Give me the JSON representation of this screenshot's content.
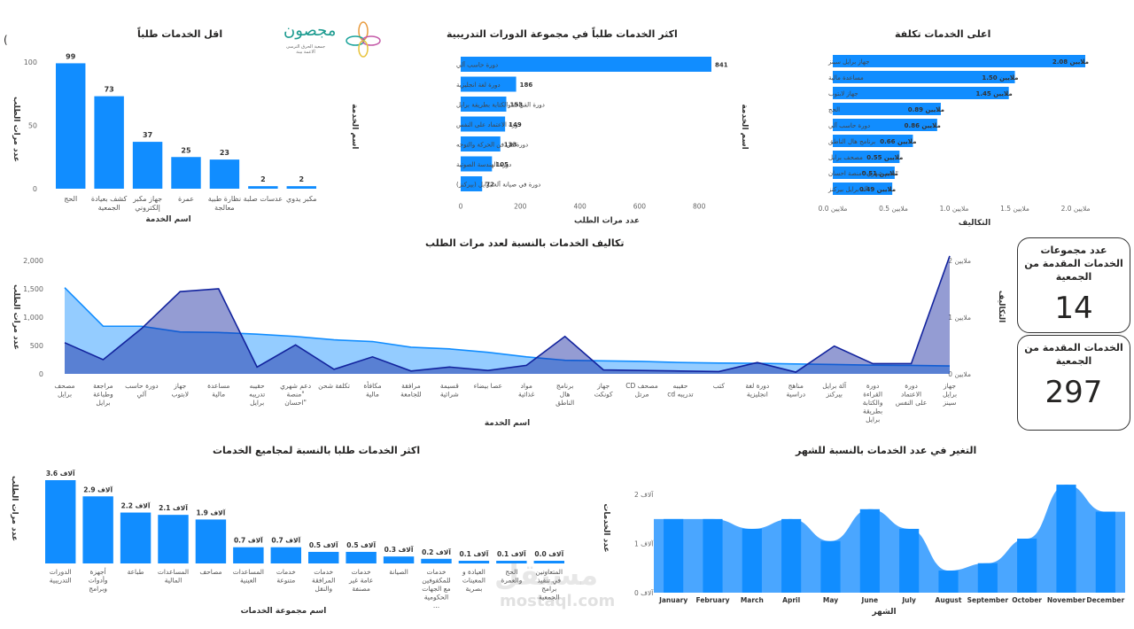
{
  "cards": {
    "groups_label": "عدد مجموعات الخدمات المقدمة من الجمعية",
    "groups_value": "14",
    "services_label": "الخدمات المقدمة من الجمعية",
    "services_value": "297"
  },
  "logo": {
    "name": "مجصون",
    "sub": "جمعية الحرق الترسى ألاعمة بينة"
  },
  "watermark": {
    "arabic": "مستقل",
    "latin": "mostaql.com"
  },
  "chart_data": [
    {
      "id": "least",
      "type": "bar",
      "title": "اقل الخدمات طلباً",
      "xlabel": "اسم الخدمة",
      "ylabel": "عدد مرات الطلب",
      "categories": [
        "الحج",
        "كشف بعيادة الجمعية",
        "جهاز مكبر إلكتروني",
        "عمرة",
        "نظارة طبية معالجة",
        "عدسات صلبة",
        "مكبر يدوي"
      ],
      "values": [
        99,
        73,
        37,
        25,
        23,
        2,
        2
      ],
      "data_labels": [
        "99",
        "73",
        "37",
        "25",
        "23",
        "2",
        "2"
      ],
      "ylim": [
        0,
        100
      ],
      "yticks": [
        "0",
        "50",
        "100"
      ]
    },
    {
      "id": "most_courses",
      "type": "bar",
      "orientation": "horizontal",
      "title": "اكثر الخدمات طلباً في مجموعة الدورات التدريبية",
      "xlabel": "عدد مرات الطلب",
      "ylabel": "اسم الخدمة",
      "categories": [
        "دورة حاسب آلي",
        "دورة لغة انجليزية",
        "دورة القراءة والكتابة بطريقة برايل",
        "دورة الاعتماد على النفس",
        "دورة في فن الحركة والتوجه",
        "دورة الهندسة الصوتية",
        "دورة في صيانة آلة برايل (بيركنز)"
      ],
      "values": [
        841,
        186,
        153,
        149,
        133,
        105,
        72
      ],
      "data_labels": [
        "841",
        "186",
        "153",
        "149",
        "133",
        "105",
        "72"
      ],
      "xlim": [
        0,
        841
      ],
      "xticks": [
        "0",
        "200",
        "400",
        "600",
        "800"
      ]
    },
    {
      "id": "highest_cost",
      "type": "bar",
      "orientation": "horizontal",
      "title": "اعلى الخدمات تكلفة",
      "xlabel": "التكاليف",
      "ylabel": "اسم الخدمة",
      "categories": [
        "جهاز برايل سينز",
        "مساعدة مالية",
        "جهاز لابتوب",
        "الحج",
        "دورة حاسب آلي",
        "برنامج هال الناطق",
        "مصحف برايل",
        "\"دعم شهري \"منصة احسان",
        "آلة برايل بيركنز"
      ],
      "values": [
        2.08,
        1.5,
        1.45,
        0.89,
        0.86,
        0.66,
        0.55,
        0.51,
        0.49
      ],
      "data_labels": [
        "ملايين 2.08",
        "ملايين 1.50",
        "ملايين 1.45",
        "ملايين 0.89",
        "ملايين 0.86",
        "ملايين 0.66",
        "ملايين 0.55",
        "ملايين 0.51",
        "ملايين 0.49"
      ],
      "xlim": [
        0,
        2.08
      ],
      "xticks": [
        "ملايين 0.0",
        "ملايين 0.5",
        "ملايين 1.0",
        "ملايين 1.5",
        "ملايين 2.0"
      ]
    },
    {
      "id": "cost_vs_requests",
      "type": "area",
      "title": "تكاليف الخدمات بالنسبة لعدد مرات الطلب",
      "xlabel": "اسم الخدمة",
      "ylabel": "عدد مرات الطلب",
      "y2label": "التكاليف",
      "categories": [
        "مصحف برايل",
        "مراجعة وطباعة برايل",
        "دورة حاسب آلي",
        "جهاز لابتوب",
        "مساعدة مالية",
        "حقيبه تدريبه برايل",
        "دعم شهري \"منصة \"احسان",
        "تكلفة شحن",
        "مكافأة مالية",
        "مرافقة للجامعة",
        "قسيمة شرائية",
        "عصا بيضاء",
        "مواد غذائية",
        "برنامج هال الناطق",
        "جهاز كونكت",
        "مصحف CD مرتل",
        "حقيبه تدريبه cd",
        "كتب",
        "دورة لغة انجليزية",
        "مناهج دراسية",
        "آلة برايل بيركنز",
        "دورة القراءة والكتابة بطريقة برايل",
        "دورة الاعتماد على النفس",
        "جهاز برايل سينز"
      ],
      "series": [
        {
          "name": "عدد مرات الطلب",
          "axis": "left",
          "values": [
            1520,
            840,
            840,
            740,
            730,
            700,
            660,
            600,
            570,
            470,
            440,
            380,
            300,
            240,
            230,
            220,
            200,
            190,
            186,
            175,
            165,
            153,
            149,
            140
          ]
        },
        {
          "name": "التكاليف",
          "axis": "right",
          "values": [
            0.55,
            0.25,
            0.8,
            1.45,
            1.5,
            0.12,
            0.51,
            0.08,
            0.3,
            0.05,
            0.12,
            0.06,
            0.15,
            0.66,
            0.07,
            0.06,
            0.05,
            0.04,
            0.2,
            0.03,
            0.49,
            0.18,
            0.18,
            2.08
          ]
        }
      ],
      "ylim": [
        0,
        2000
      ],
      "yticks": [
        "0",
        "500",
        "1,000",
        "1,500",
        "2,000"
      ],
      "y2lim": [
        0,
        2
      ],
      "y2ticks": [
        "ملايين 0",
        "ملايين 1",
        "ملايين 2"
      ]
    },
    {
      "id": "most_groups",
      "type": "bar",
      "title": "اكثر الخدمات طلبا بالنسبة لمجاميع الخدمات",
      "xlabel": "اسم مجموعة الخدمات",
      "ylabel": "عدد مرات الطلب",
      "categories": [
        "الدورات التدريبية",
        "أجهزة وأدوات وبرامج",
        "طباعة",
        "المساعدات المالية",
        "مصاحف",
        "المساعدات العينية",
        "خدمات متنوعة",
        "خدمات المرافقة والنقل",
        "خدمات عامة غير مصنفة",
        "الصيانة",
        "خدمات للمكفوفين مع الجهات الحكومية ...",
        "العيادة و المعينات بصرية",
        "الحج والعمرة",
        "المتعاونين في تنفيذ برامج الجمعية"
      ],
      "values": [
        3.6,
        2.9,
        2.2,
        2.1,
        1.9,
        0.7,
        0.7,
        0.5,
        0.5,
        0.3,
        0.2,
        0.1,
        0.1,
        0.0
      ],
      "data_labels": [
        "آلاف 3.6",
        "آلاف 2.9",
        "آلاف 2.2",
        "آلاف 2.1",
        "آلاف 1.9",
        "آلاف 0.7",
        "آلاف 0.7",
        "آلاف 0.5",
        "آلاف 0.5",
        "آلاف 0.3",
        "آلاف 0.2",
        "آلاف 0.1",
        "آلاف 0.1",
        "آلاف 0.0"
      ],
      "ylim": [
        0,
        3.6
      ]
    },
    {
      "id": "monthly",
      "type": "bar",
      "title": "التغير في عدد الخدمات بالنسبة للشهر",
      "xlabel": "الشهر",
      "ylabel": "عدد الخدمات",
      "categories": [
        "January",
        "February",
        "March",
        "April",
        "May",
        "June",
        "July",
        "August",
        "September",
        "October",
        "November",
        "December"
      ],
      "values": [
        1.5,
        1.5,
        1.3,
        1.5,
        1.05,
        1.7,
        1.3,
        0.45,
        0.6,
        1.1,
        2.2,
        1.65
      ],
      "ylim": [
        0,
        2.4
      ],
      "yticks": [
        "آلاف 0",
        "آلاف 1",
        "آلاف 2"
      ]
    }
  ]
}
